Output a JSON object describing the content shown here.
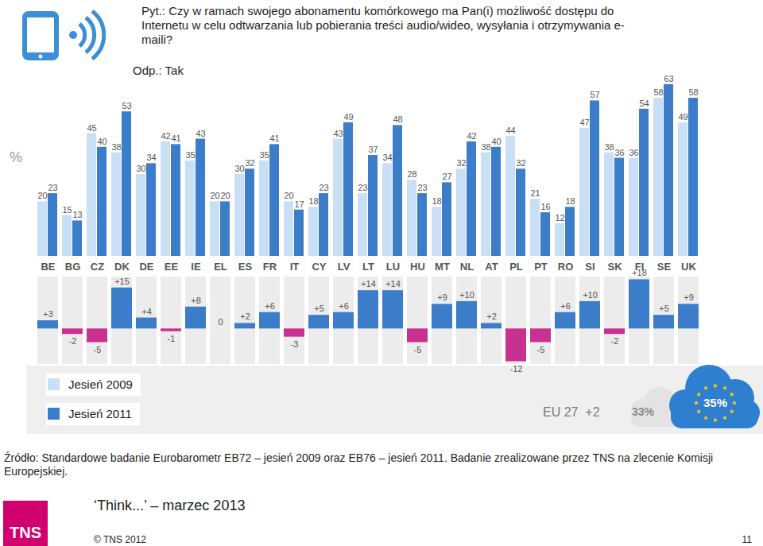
{
  "chart_data": [
    {
      "type": "bar",
      "title": "Pyt.: Czy w ramach swojego abonamentu komórkowego ma Pan(i) możliwość dostępu do Internetu w celu odtwarzania lub pobierania treści audio/wideo, wysyłania i otrzymywania e-maili?",
      "subtitle": "Odp.: Tak",
      "ylabel": "%",
      "categories": [
        "BE",
        "BG",
        "CZ",
        "DK",
        "DE",
        "EE",
        "IE",
        "EL",
        "ES",
        "FR",
        "IT",
        "CY",
        "LV",
        "LT",
        "LU",
        "HU",
        "MT",
        "NL",
        "AT",
        "PL",
        "PT",
        "RO",
        "SI",
        "SK",
        "FI",
        "SE",
        "UK"
      ],
      "series": [
        {
          "name": "Jesień 2009",
          "color": "#c9dff5",
          "values": [
            20,
            15,
            45,
            38,
            30,
            42,
            35,
            20,
            30,
            35,
            20,
            18,
            43,
            23,
            34,
            28,
            18,
            32,
            38,
            44,
            21,
            12,
            47,
            38,
            36,
            58,
            49
          ]
        },
        {
          "name": "Jesień 2011",
          "color": "#3b7dc9",
          "values": [
            23,
            13,
            40,
            53,
            34,
            41,
            43,
            20,
            32,
            41,
            17,
            23,
            49,
            37,
            48,
            23,
            27,
            42,
            40,
            32,
            16,
            18,
            57,
            36,
            54,
            63,
            58
          ]
        }
      ],
      "ylim": [
        0,
        65
      ],
      "yticks": [],
      "tick_labels": false,
      "data_labels": true,
      "legend": "bottom left"
    },
    {
      "type": "bar",
      "categories": [
        "BE",
        "BG",
        "CZ",
        "DK",
        "DE",
        "EE",
        "IE",
        "EL",
        "ES",
        "FR",
        "IT",
        "CY",
        "LV",
        "LT",
        "LU",
        "HU",
        "MT",
        "NL",
        "AT",
        "PL",
        "PT",
        "RO",
        "SI",
        "SK",
        "FI",
        "SE",
        "UK"
      ],
      "values": [
        3,
        -2,
        -5,
        15,
        4,
        -1,
        8,
        0,
        2,
        6,
        -3,
        5,
        6,
        14,
        14,
        -5,
        9,
        10,
        2,
        -12,
        -5,
        6,
        10,
        -2,
        18,
        5,
        9
      ],
      "value_labels": [
        "+3",
        "-2",
        "-5",
        "+15",
        "+4",
        "-1",
        "+8",
        "0",
        "+2",
        "+6",
        "-3",
        "+5",
        "+6",
        "+14",
        "+14",
        "-5",
        "+9",
        "+10",
        "+2",
        "-12",
        "-5",
        "+6",
        "+10",
        "-2",
        "+18",
        "+5",
        "+9"
      ],
      "colors": [
        "#3b7dc9",
        "#c8318f",
        "#c8318f",
        "#3b7dc9",
        "#3b7dc9",
        "#c8318f",
        "#3b7dc9",
        "#3b7dc9",
        "#3b7dc9",
        "#3b7dc9",
        "#c8318f",
        "#3b7dc9",
        "#3b7dc9",
        "#3b7dc9",
        "#3b7dc9",
        "#c8318f",
        "#3b7dc9",
        "#3b7dc9",
        "#3b7dc9",
        "#c8318f",
        "#c8318f",
        "#3b7dc9",
        "#3b7dc9",
        "#c8318f",
        "#3b7dc9",
        "#3b7dc9",
        "#3b7dc9"
      ],
      "ylim": [
        -13,
        19
      ],
      "yticks": [],
      "tick_labels": "x",
      "data_labels": true
    }
  ],
  "eu_summary": {
    "label": "EU 27",
    "change": 2,
    "change_label": "+2",
    "values": [
      33,
      35
    ],
    "value_labels": [
      "33%",
      "35%"
    ]
  },
  "source": "Źródło: Standardowe badanie Eurobarometr EB72 – jesień 2009 oraz EB76 –  jesień 2011. Badanie zrealizowane przez TNS na zlecenie Komisji Europejskiej.",
  "footer": {
    "logo": "TNS",
    "slogan": "‘Think...’ – marzec 2013",
    "copyright": "© TNS 2012",
    "page": 11
  }
}
